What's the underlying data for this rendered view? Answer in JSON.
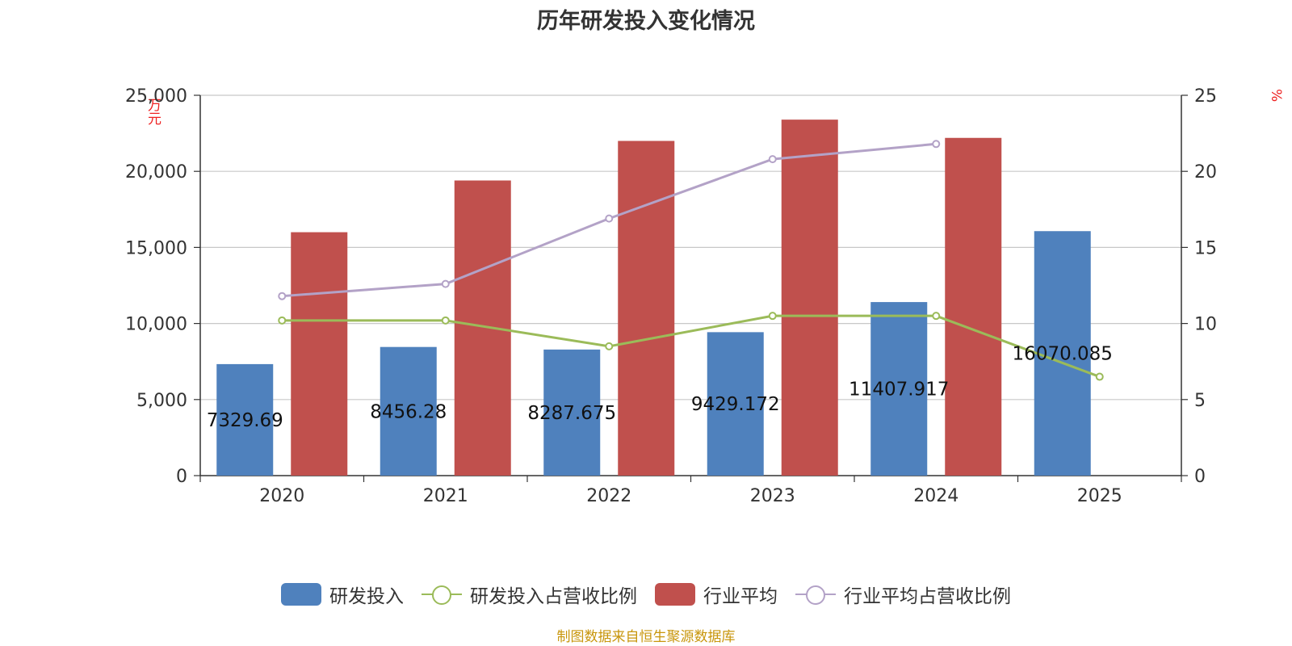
{
  "chart_data": {
    "type": "bar",
    "title": "历年研发投入变化情况",
    "ylabel_left": "万元",
    "ylabel_right": "%",
    "categories": [
      "2020",
      "2021",
      "2022",
      "2023",
      "2024",
      "2025"
    ],
    "ylim_left": [
      0,
      25000
    ],
    "ylim_right": [
      0,
      25
    ],
    "yticks_left": [
      "0",
      "5,000",
      "10,000",
      "15,000",
      "20,000",
      "25,000"
    ],
    "yticks_right": [
      "0",
      "5",
      "10",
      "15",
      "20",
      "25"
    ],
    "grid": true,
    "legend_position": "bottom",
    "series": [
      {
        "name": "研发投入",
        "type": "bar",
        "axis": "left",
        "color": "#4f81bd",
        "values": [
          7329.69,
          8456.28,
          8287.675,
          9429.172,
          11407.917,
          16070.085
        ],
        "labels": [
          "7329.69",
          "8456.28",
          "8287.675",
          "9429.172",
          "11407.917",
          "16070.085"
        ]
      },
      {
        "name": "研发投入占营收比例",
        "type": "line",
        "axis": "right",
        "color": "#9bbb59",
        "values": [
          10.2,
          10.2,
          8.5,
          10.5,
          10.5,
          6.5
        ]
      },
      {
        "name": "行业平均",
        "type": "bar",
        "axis": "left",
        "color": "#c0504d",
        "values": [
          16000,
          19400,
          22000,
          23400,
          22200,
          null
        ]
      },
      {
        "name": "行业平均占营收比例",
        "type": "line",
        "axis": "right",
        "color": "#b3a2c7",
        "values": [
          11.8,
          12.6,
          16.9,
          20.8,
          21.8,
          null
        ]
      }
    ]
  },
  "source": "制图数据来自恒生聚源数据库"
}
